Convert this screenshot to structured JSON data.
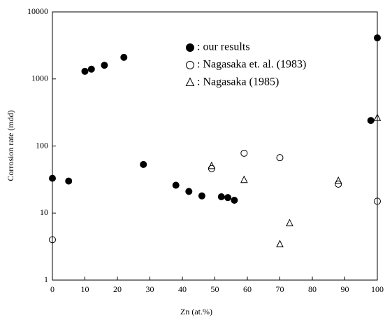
{
  "chart_data": {
    "type": "scatter",
    "log_y": true,
    "grid": false,
    "x_label": "Zn (at.%)",
    "y_label": "Corrosion rate (mdd)",
    "xlim": [
      0,
      100
    ],
    "xticks": [
      0,
      10,
      20,
      30,
      40,
      50,
      60,
      70,
      80,
      90,
      100
    ],
    "ylim": [
      1,
      10000
    ],
    "yticks": [
      1,
      10,
      100,
      1000,
      10000
    ],
    "series": [
      {
        "name": ": our results",
        "color": "#000000",
        "marker": "filled-circle",
        "x": [
          0,
          5,
          10,
          12,
          16,
          22,
          28,
          38,
          42,
          46,
          52,
          54,
          56,
          98,
          100
        ],
        "values": [
          33,
          30,
          1300,
          1400,
          1600,
          2100,
          53,
          26,
          21,
          18,
          17.5,
          17,
          15.5,
          240,
          4100
        ]
      },
      {
        "name": ": Nagasaka et. al. (1983)",
        "color": "#000000",
        "marker": "open-circle",
        "x": [
          0,
          49,
          59,
          70,
          88,
          100
        ],
        "values": [
          4,
          46,
          78,
          67,
          27,
          15
        ]
      },
      {
        "name": ": Nagasaka (1985)",
        "color": "#000000",
        "marker": "triangle",
        "x": [
          49,
          59,
          70,
          73,
          88,
          100
        ],
        "values": [
          50,
          31,
          3.4,
          7,
          30,
          260
        ]
      }
    ]
  }
}
